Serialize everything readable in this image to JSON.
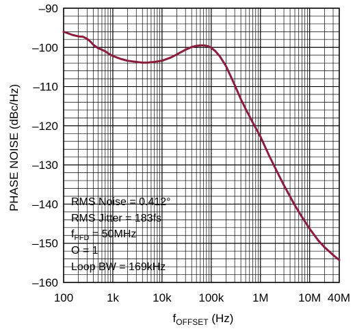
{
  "chart_data": {
    "type": "line",
    "xlabel": {
      "main": "f",
      "sub": "OFFSET",
      "unit": " (Hz)"
    },
    "ylabel": "PHASE NOISE (dBc/Hz)",
    "x_scale": "log",
    "xlim": [
      100,
      40000000
    ],
    "ylim": [
      -160,
      -90
    ],
    "grid": true,
    "x_ticks": [
      {
        "value": 100,
        "label": "100"
      },
      {
        "value": 1000,
        "label": "1k"
      },
      {
        "value": 10000,
        "label": "10k"
      },
      {
        "value": 100000,
        "label": "100k"
      },
      {
        "value": 1000000,
        "label": "1M"
      },
      {
        "value": 10000000,
        "label": "10M"
      },
      {
        "value": 40000000,
        "label": "40M"
      }
    ],
    "y_ticks": [
      {
        "value": -90,
        "label": "–90"
      },
      {
        "value": -100,
        "label": "–100"
      },
      {
        "value": -110,
        "label": "–110"
      },
      {
        "value": -120,
        "label": "–120"
      },
      {
        "value": -130,
        "label": "–130"
      },
      {
        "value": -140,
        "label": "–140"
      },
      {
        "value": -150,
        "label": "–150"
      },
      {
        "value": -160,
        "label": "–160"
      }
    ],
    "series": [
      {
        "color": "#8c1c3c",
        "x": [
          100,
          150,
          200,
          250,
          300,
          350,
          400,
          500,
          600,
          700,
          800,
          1000,
          1500,
          2000,
          3000,
          4000,
          5000,
          7000,
          10000,
          15000,
          20000,
          30000,
          40000,
          50000,
          60000,
          70000,
          80000,
          90000,
          100000,
          120000,
          150000,
          200000,
          300000,
          400000,
          500000,
          700000,
          1000000,
          1500000,
          2000000,
          3000000,
          5000000,
          7000000,
          10000000,
          15000000,
          20000000,
          30000000,
          40000000
        ],
        "y": [
          -96,
          -96.8,
          -97.2,
          -97.3,
          -97.8,
          -98.5,
          -99.3,
          -100.2,
          -100.6,
          -101,
          -101.5,
          -102.2,
          -103,
          -103.4,
          -103.7,
          -103.9,
          -103.9,
          -103.7,
          -103.4,
          -102.6,
          -101.8,
          -100.6,
          -99.9,
          -99.6,
          -99.5,
          -99.5,
          -99.6,
          -99.8,
          -100.1,
          -100.9,
          -102.3,
          -104.8,
          -109.6,
          -113.2,
          -115.7,
          -119.2,
          -122.8,
          -127.6,
          -130.8,
          -135.2,
          -140.3,
          -143.3,
          -146.3,
          -149.3,
          -151,
          -153,
          -154.3
        ]
      }
    ],
    "annotations": [
      {
        "text": "RMS Noise = 0.412°"
      },
      {
        "text": "RMS Jitter = 183fs"
      },
      {
        "main": "f",
        "sub": "PFD",
        "rest": " = 50MHz"
      },
      {
        "text": "O = 1"
      },
      {
        "text": "Loop BW = 169kHz"
      }
    ]
  }
}
